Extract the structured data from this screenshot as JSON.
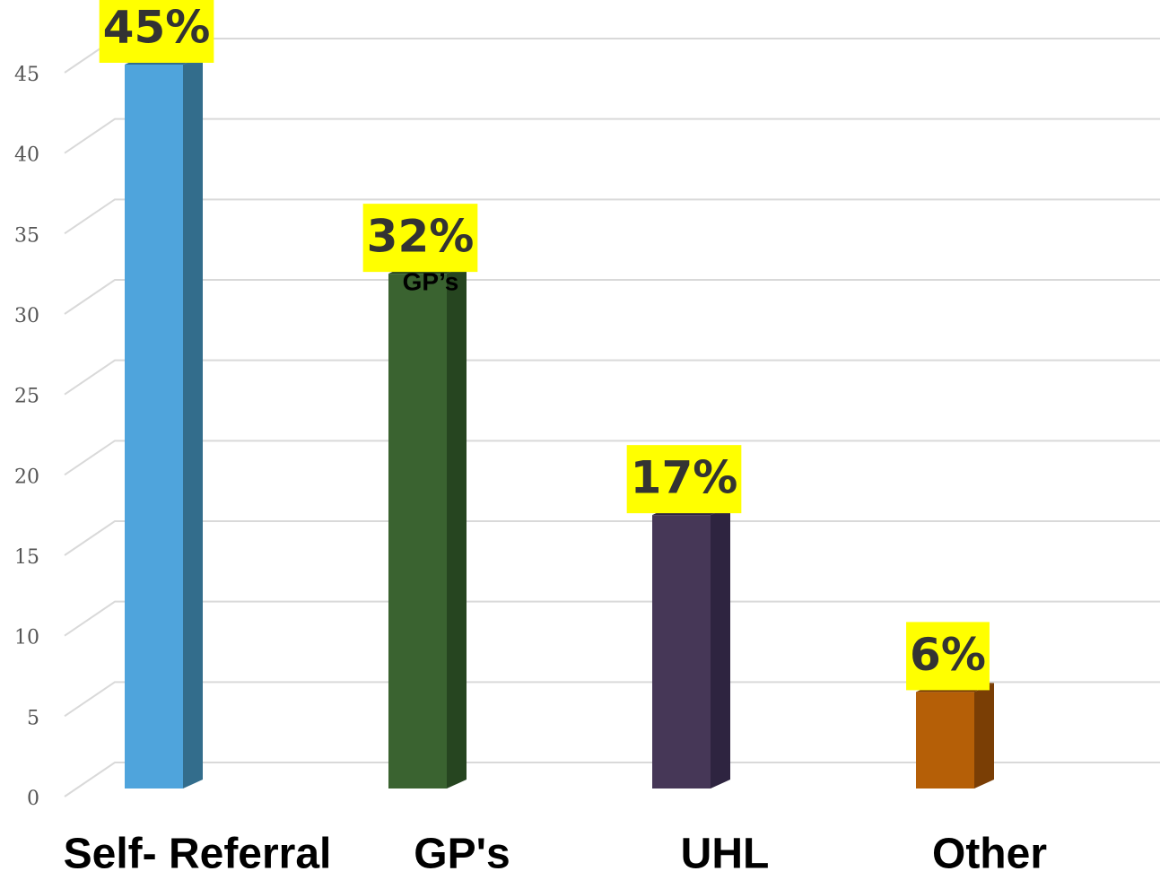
{
  "chart_data": {
    "type": "bar3d",
    "categories": [
      "Self- Referral",
      "GP's",
      "UHL",
      "Other"
    ],
    "values": [
      45,
      32,
      17,
      6
    ],
    "value_labels": [
      "45%",
      "32%",
      "17%",
      "6%"
    ],
    "colors": [
      "#4fa4dc",
      "#3a6330",
      "#463757",
      "#b55f07"
    ],
    "side_colors": [
      "#336d8c",
      "#264520",
      "#2e2440",
      "#7a3e05"
    ],
    "annotation": "GP’s",
    "ylim": [
      0,
      45
    ],
    "yticks": [
      0,
      5,
      10,
      15,
      20,
      25,
      30,
      35,
      40,
      45
    ],
    "grid": true
  }
}
